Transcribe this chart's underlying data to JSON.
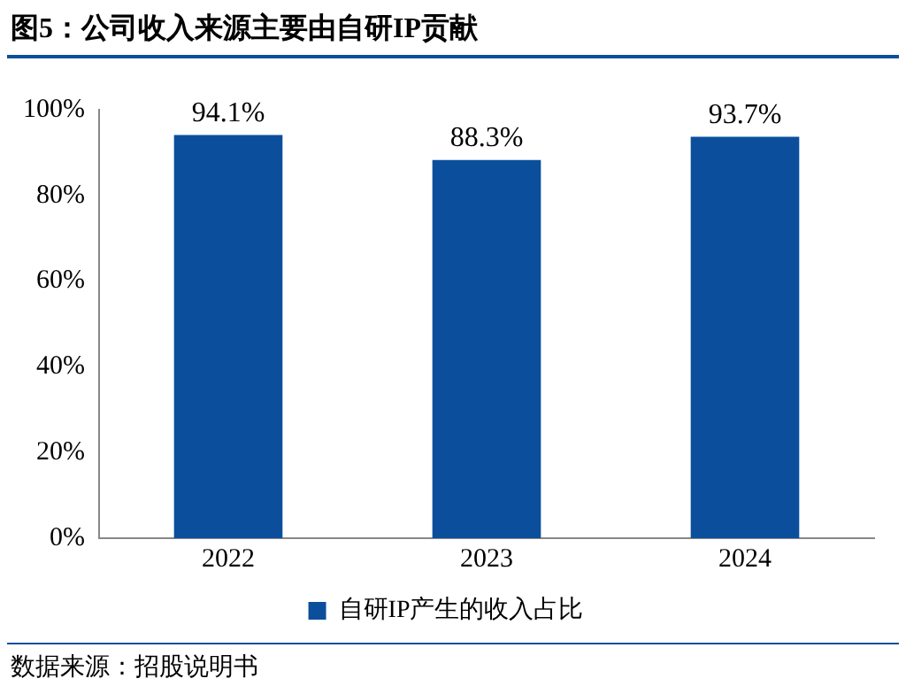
{
  "chart_data": {
    "type": "bar",
    "title": "图5：公司收入来源主要由自研IP贡献",
    "categories": [
      "2022",
      "2023",
      "2024"
    ],
    "series": [
      {
        "name": "自研IP产生的收入占比",
        "color": "#0b4f9c",
        "values": [
          94.1,
          88.3,
          93.7
        ]
      }
    ],
    "value_labels": [
      "94.1%",
      "88.3%",
      "93.7%"
    ],
    "ylim": [
      0,
      100
    ],
    "yticks": [
      {
        "value": 0,
        "label": "0%"
      },
      {
        "value": 20,
        "label": "20%"
      },
      {
        "value": 40,
        "label": "40%"
      },
      {
        "value": 60,
        "label": "60%"
      },
      {
        "value": 80,
        "label": "80%"
      },
      {
        "value": 100,
        "label": "100%"
      }
    ],
    "grid": false,
    "legend": "bottom",
    "annotations": [
      "数据来源：招股说明书"
    ]
  }
}
